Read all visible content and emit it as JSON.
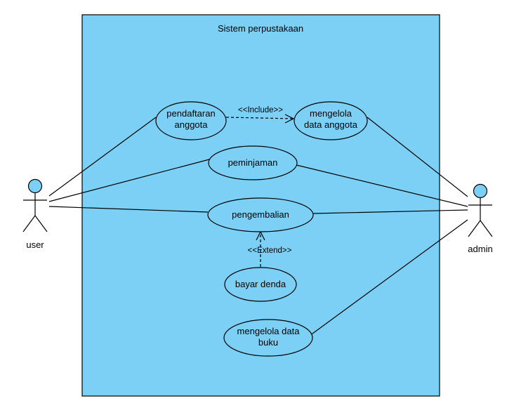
{
  "system": {
    "title": "Sistem perpustakaan"
  },
  "actors": {
    "user": "user",
    "admin": "admin"
  },
  "usecases": {
    "pendaftaran": [
      "pendaftaran",
      "anggota"
    ],
    "mengelola_anggota": [
      "mengelola",
      "data anggota"
    ],
    "peminjaman": [
      "peminjaman"
    ],
    "pengembalian": [
      "pengembalian"
    ],
    "bayar_denda": [
      "bayar denda"
    ],
    "mengelola_buku": [
      "mengelola data",
      "buku"
    ]
  },
  "relations": {
    "include": "<<Include>>",
    "extend": "<<Extend>>"
  },
  "colors": {
    "system_fill": "#7DD0F5",
    "usecase_fill": "#7DD0F5",
    "actor_head": "#7DD0F5",
    "stroke": "#000000"
  }
}
